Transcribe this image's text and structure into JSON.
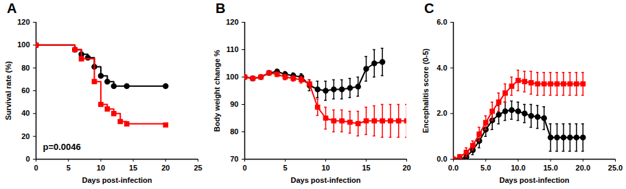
{
  "chart_data": [
    {
      "type": "step",
      "title": "A",
      "x_label": "Days post-infection",
      "y_label": "Survival rate (%)",
      "xlim": [
        0,
        25
      ],
      "xticks": [
        0,
        5,
        10,
        15,
        20,
        25
      ],
      "ylim": [
        0,
        120
      ],
      "yticks": [
        0,
        20,
        40,
        60,
        80,
        100,
        120
      ],
      "annotations": [
        {
          "text": "p=0.0046"
        }
      ],
      "series": [
        {
          "color": "#000000",
          "marker": "circle",
          "x": [
            0,
            6,
            7,
            8,
            9,
            10,
            11,
            12,
            14,
            20
          ],
          "values": [
            100,
            96,
            92,
            89,
            81,
            73,
            68,
            64,
            64,
            64
          ]
        },
        {
          "color": "#ff0000",
          "marker": "square",
          "x": [
            0,
            6,
            7,
            9,
            10,
            11,
            12,
            13,
            14,
            20
          ],
          "values": [
            100,
            96,
            88,
            68,
            48,
            44,
            40,
            33,
            31,
            30
          ]
        }
      ]
    },
    {
      "type": "line",
      "title": "B",
      "x_label": "Days post-infection",
      "y_label": "Body weight change %",
      "xlim": [
        0,
        20
      ],
      "xticks": [
        0,
        5,
        10,
        15,
        20
      ],
      "ylim": [
        70,
        120
      ],
      "yticks": [
        70,
        80,
        90,
        100,
        110,
        120
      ],
      "series": [
        {
          "color": "#000000",
          "marker": "circle",
          "x": [
            0,
            1,
            2,
            3,
            4,
            5,
            6,
            7,
            8,
            9,
            10,
            11,
            12,
            13,
            14,
            15,
            16,
            17
          ],
          "values": [
            100,
            99.5,
            100,
            101.5,
            102,
            101,
            100.5,
            100,
            97,
            95.5,
            95,
            95.5,
            95.5,
            96,
            96.5,
            103,
            105,
            105.5
          ],
          "errors": [
            0,
            0.5,
            0.5,
            0.5,
            0.8,
            1,
            1,
            1.2,
            2,
            3,
            3.5,
            3.5,
            3.5,
            3.5,
            3.5,
            4.5,
            5,
            5
          ]
        },
        {
          "color": "#ff0000",
          "marker": "square",
          "x": [
            0,
            1,
            2,
            3,
            4,
            5,
            6,
            7,
            8,
            9,
            10,
            11,
            12,
            13,
            14,
            15,
            16,
            17,
            18,
            19,
            20
          ],
          "values": [
            100,
            99.5,
            100,
            101.5,
            101,
            100,
            99.5,
            99,
            97.5,
            89,
            85,
            84,
            84,
            83.5,
            83,
            84,
            84,
            84,
            84,
            84,
            84
          ],
          "errors": [
            0,
            0.5,
            0.5,
            0.5,
            0.8,
            1,
            1,
            1.2,
            1.5,
            3,
            4,
            4,
            4,
            4,
            4.5,
            5,
            5.5,
            6,
            6,
            6,
            6
          ]
        }
      ]
    },
    {
      "type": "line",
      "title": "C",
      "x_label": "Days post-infection",
      "y_label": "Encephalitis score (0-5)",
      "xlim": [
        0,
        25
      ],
      "xticks": [
        {
          "value": 0,
          "label": "0.0"
        },
        {
          "value": 5,
          "label": "5.0"
        },
        {
          "value": 10,
          "label": "10.0"
        },
        {
          "value": 15,
          "label": "15.0"
        },
        {
          "value": 20,
          "label": "20.0"
        },
        {
          "value": 25,
          "label": "25.0"
        }
      ],
      "ylim": [
        0,
        6
      ],
      "yticks": [
        {
          "value": 0,
          "label": "0.0"
        },
        {
          "value": 2,
          "label": "2.0"
        },
        {
          "value": 4,
          "label": "4.0"
        },
        {
          "value": 6,
          "label": "6.0"
        }
      ],
      "series": [
        {
          "color": "#000000",
          "marker": "circle",
          "x": [
            0,
            1,
            2,
            3,
            4,
            5,
            6,
            7,
            8,
            9,
            10,
            11,
            12,
            13,
            14,
            15,
            16,
            17,
            18,
            19,
            20
          ],
          "values": [
            0,
            0,
            0.1,
            0.4,
            0.8,
            1.3,
            1.7,
            1.95,
            2.1,
            2.15,
            2.1,
            2.0,
            1.9,
            1.85,
            1.8,
            0.95,
            0.95,
            0.95,
            0.95,
            0.95,
            0.95
          ],
          "errors": [
            0,
            0,
            0.1,
            0.2,
            0.3,
            0.3,
            0.4,
            0.4,
            0.4,
            0.4,
            0.4,
            0.4,
            0.5,
            0.5,
            0.5,
            0.6,
            0.6,
            0.6,
            0.6,
            0.6,
            0.6
          ]
        },
        {
          "color": "#ff0000",
          "marker": "square",
          "x": [
            0,
            1,
            2,
            3,
            4,
            5,
            6,
            7,
            8,
            9,
            10,
            11,
            12,
            13,
            14,
            15,
            16,
            17,
            18,
            19,
            20
          ],
          "values": [
            0,
            0.1,
            0.3,
            0.6,
            1.1,
            1.6,
            2.1,
            2.5,
            2.9,
            3.2,
            3.45,
            3.4,
            3.35,
            3.3,
            3.3,
            3.3,
            3.3,
            3.3,
            3.3,
            3.3,
            3.3
          ],
          "errors": [
            0,
            0.1,
            0.2,
            0.2,
            0.3,
            0.3,
            0.4,
            0.4,
            0.4,
            0.4,
            0.45,
            0.45,
            0.5,
            0.5,
            0.5,
            0.5,
            0.5,
            0.5,
            0.5,
            0.5,
            0.5
          ]
        }
      ]
    }
  ]
}
